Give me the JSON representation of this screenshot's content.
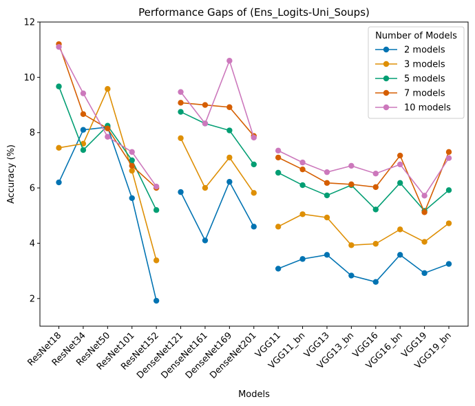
{
  "chart_data": {
    "type": "line",
    "title": "Performance Gaps of (Ens_Logits-Uni_Soups)",
    "xlabel": "Models",
    "ylabel": "Accuracy (%)",
    "ylim": [
      1,
      12
    ],
    "yticks": [
      2,
      4,
      6,
      8,
      10,
      12
    ],
    "categories": [
      "ResNet18",
      "ResNet34",
      "ResNet50",
      "ResNet101",
      "ResNet152",
      "DenseNet121",
      "DenseNet161",
      "DenseNet169",
      "DenseNet201",
      "VGG11",
      "VGG11_bn",
      "VGG13",
      "VGG13_bn",
      "VGG16",
      "VGG16_bn",
      "VGG19",
      "VGG19_bn"
    ],
    "groups": [
      [
        0,
        4
      ],
      [
        5,
        8
      ],
      [
        9,
        16
      ]
    ],
    "legend": {
      "title": "Number of Models",
      "placement": "top-right"
    },
    "grid": false,
    "series": [
      {
        "name": "2 models",
        "color": "#0173b2",
        "values": [
          6.2,
          8.1,
          8.2,
          5.63,
          1.92,
          5.85,
          4.1,
          6.22,
          4.6,
          3.08,
          3.43,
          3.58,
          2.83,
          2.6,
          3.58,
          2.92,
          3.25
        ]
      },
      {
        "name": "3 models",
        "color": "#de8f05",
        "values": [
          7.45,
          7.6,
          9.58,
          6.62,
          3.38,
          7.8,
          6.0,
          7.1,
          5.82,
          4.6,
          5.05,
          4.93,
          3.93,
          3.98,
          4.5,
          4.05,
          4.72
        ]
      },
      {
        "name": "5 models",
        "color": "#029e73",
        "values": [
          9.67,
          7.37,
          8.25,
          7.0,
          5.2,
          8.75,
          8.33,
          8.08,
          6.85,
          6.55,
          6.1,
          5.73,
          6.1,
          5.22,
          6.18,
          5.17,
          5.92
        ]
      },
      {
        "name": "7 models",
        "color": "#d55e00",
        "values": [
          11.2,
          8.67,
          8.15,
          6.8,
          6.0,
          9.08,
          9.0,
          8.92,
          7.88,
          7.1,
          6.67,
          6.18,
          6.13,
          6.03,
          7.17,
          5.12,
          7.3
        ]
      },
      {
        "name": "10 models",
        "color": "#cc78bc",
        "values": [
          11.1,
          9.42,
          7.85,
          7.3,
          6.05,
          9.47,
          8.33,
          10.6,
          7.82,
          7.35,
          6.92,
          6.57,
          6.8,
          6.52,
          6.85,
          5.72,
          7.08
        ]
      }
    ]
  }
}
